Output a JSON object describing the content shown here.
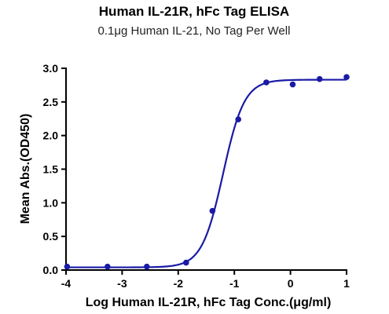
{
  "chart_data": {
    "type": "scatter",
    "title": "Human IL-21R, hFc Tag ELISA",
    "subtitle": "0.1μg Human IL-21, No Tag Per Well",
    "xlabel": "Log Human IL-21R, hFc Tag Conc.(μg/ml)",
    "ylabel": "Mean Abs.(OD450)",
    "xlim": [
      -4,
      1
    ],
    "ylim": [
      0,
      3.0
    ],
    "x_ticks": [
      -4,
      -3,
      -2,
      -1,
      0,
      1
    ],
    "x_tick_labels": [
      "-4",
      "-3",
      "-2",
      "-1",
      "0",
      "1"
    ],
    "y_ticks": [
      0.0,
      0.5,
      1.0,
      1.5,
      2.0,
      2.5,
      3.0
    ],
    "y_tick_labels": [
      "0.0",
      "0.5",
      "1.0",
      "1.5",
      "2.0",
      "2.5",
      "3.0"
    ],
    "grid": false,
    "color": "#1a1aa6",
    "series": [
      {
        "x": [
          -3.98,
          -3.26,
          -2.56,
          -1.86,
          -1.39,
          -0.93,
          -0.43,
          0.04,
          0.52,
          1.0
        ],
        "y": [
          0.05,
          0.05,
          0.05,
          0.11,
          0.88,
          2.24,
          2.79,
          2.76,
          2.84,
          2.87
        ]
      }
    ],
    "fit": {
      "type": "four-parameter-logistic",
      "bottom": 0.04,
      "top": 2.83,
      "log_ec50": -1.2,
      "hill_slope": 2.3
    }
  }
}
